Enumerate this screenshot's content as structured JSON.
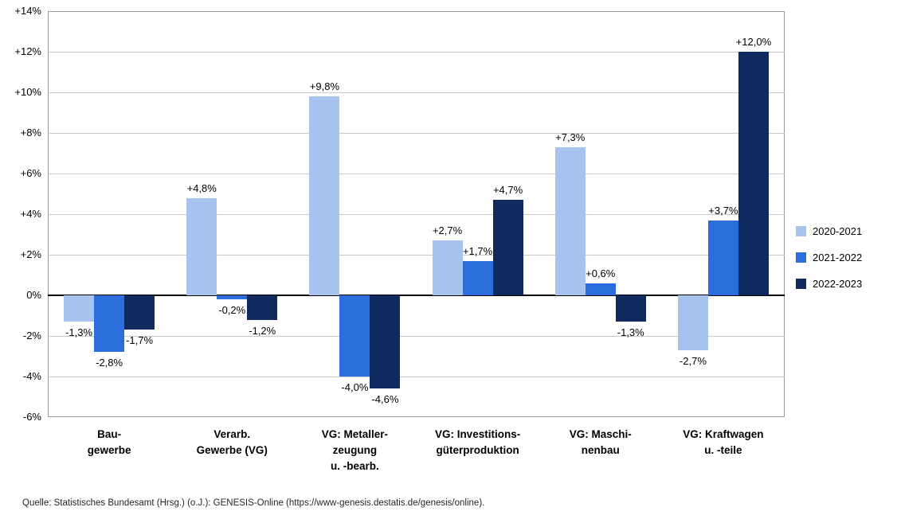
{
  "chart_data": {
    "type": "bar",
    "categories": [
      {
        "lines": [
          "Bau-",
          "gewerbe"
        ]
      },
      {
        "lines": [
          "Verarb.",
          "Gewerbe (VG)"
        ]
      },
      {
        "lines": [
          "VG: Metaller-",
          "zeugung",
          "u. -bearb."
        ]
      },
      {
        "lines": [
          "VG: Investitions-",
          "güterproduktion"
        ]
      },
      {
        "lines": [
          "VG: Maschi-",
          "nenbau"
        ]
      },
      {
        "lines": [
          "VG: Kraftwagen",
          "u. -teile"
        ]
      }
    ],
    "series": [
      {
        "name": "2020-2021",
        "color": "#a8c4ee",
        "values": [
          -1.3,
          4.8,
          9.8,
          2.7,
          7.3,
          -2.7
        ],
        "labels": [
          "-1,3%",
          "+4,8%",
          "+9,8%",
          "+2,7%",
          "+7,3%",
          "-2,7%"
        ]
      },
      {
        "name": "2021-2022",
        "color": "#2a6ddb",
        "values": [
          -2.8,
          -0.2,
          -4.0,
          1.7,
          0.6,
          3.7
        ],
        "labels": [
          "-2,8%",
          "-0,2%",
          "-4,0%",
          "+1,7%",
          "+0,6%",
          "+3,7%"
        ]
      },
      {
        "name": "2022-2023",
        "color": "#10295e",
        "values": [
          -1.7,
          -1.2,
          -4.6,
          4.7,
          -1.3,
          12.0
        ],
        "labels": [
          "-1,7%",
          "-1,2%",
          "-4,6%",
          "+4,7%",
          "-1,3%",
          "+12,0%"
        ]
      }
    ],
    "ylim": [
      -6,
      14
    ],
    "yticks": [
      {
        "value": 14,
        "label": "+14%"
      },
      {
        "value": 12,
        "label": "+12%"
      },
      {
        "value": 10,
        "label": "+10%"
      },
      {
        "value": 8,
        "label": "+8%"
      },
      {
        "value": 6,
        "label": "+6%"
      },
      {
        "value": 4,
        "label": "+4%"
      },
      {
        "value": 2,
        "label": "+2%"
      },
      {
        "value": 0,
        "label": "0%"
      },
      {
        "value": -2,
        "label": "-2%"
      },
      {
        "value": -4,
        "label": "-4%"
      },
      {
        "value": -6,
        "label": "-6%"
      }
    ],
    "grid": true,
    "legend_position": "right"
  },
  "source": "Quelle: Statistisches Bundesamt (Hrsg.) (o.J.): GENESIS-Online (https://www-genesis.destatis.de/genesis/online)."
}
